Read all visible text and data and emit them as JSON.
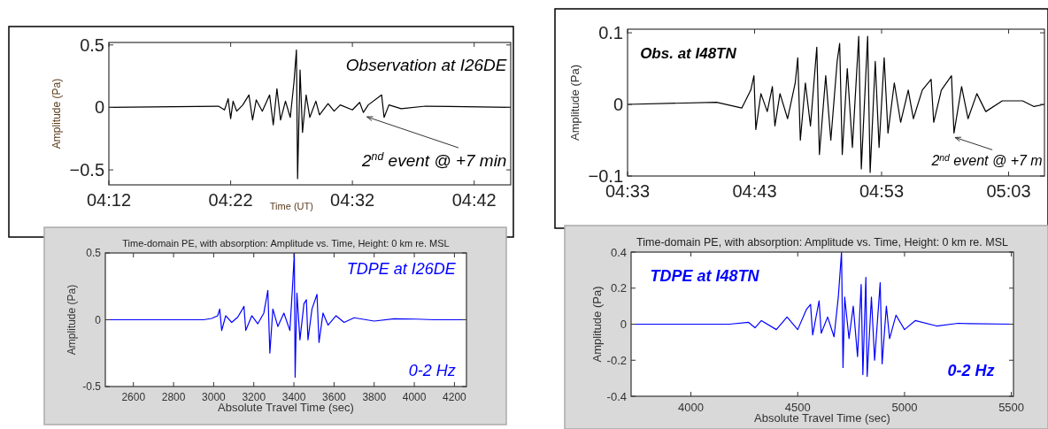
{
  "chart_data": [
    {
      "type": "line",
      "xlabel": "Time (UT)",
      "ylabel": "Amplitude (Pa)",
      "xlim": [
        4.2,
        4.75
      ],
      "ylim": [
        -0.62,
        0.52
      ],
      "xticks": [
        {
          "value": 4.2,
          "label": "04:12"
        },
        {
          "value": 4.3667,
          "label": "04:22"
        },
        {
          "value": 4.5333,
          "label": "04:32"
        },
        {
          "value": 4.7,
          "label": "04:42"
        }
      ],
      "yticks": [
        {
          "value": -0.5,
          "label": "−0.5"
        },
        0,
        0.5
      ],
      "grid": false,
      "annotations": [
        "Observation at I26DE",
        {
          "text": "2$^{nd}$ event @ +7 min",
          "x": 4.5483,
          "y": -0.04
        }
      ],
      "series": [
        {
          "color": "#000000",
          "x": [
            4.2,
            4.35,
            4.3583,
            4.3633,
            4.3667,
            4.37,
            4.375,
            4.3833,
            4.3917,
            4.3967,
            4.4017,
            4.41,
            4.42,
            4.425,
            4.43,
            4.435,
            4.4417,
            4.4483,
            4.4533,
            4.4567,
            4.4583,
            4.4617,
            4.465,
            4.47,
            4.475,
            4.4833,
            4.4883,
            4.5,
            4.5083,
            4.5167,
            4.5333,
            4.5433,
            4.5483,
            4.555,
            4.5733,
            4.5767,
            4.5833,
            4.6,
            4.6333,
            4.75
          ],
          "values": [
            0,
            0.01,
            -0.02,
            0.07,
            -0.09,
            0.05,
            -0.03,
            0.02,
            0.1,
            -0.1,
            0.06,
            -0.03,
            0.1,
            -0.14,
            0.15,
            -0.1,
            0.05,
            -0.08,
            0.2,
            0.46,
            -0.57,
            0.3,
            -0.2,
            0.1,
            -0.08,
            0.05,
            -0.06,
            0.03,
            -0.03,
            0.02,
            -0.02,
            0.04,
            -0.04,
            0.02,
            0.1,
            -0.08,
            0.02,
            -0.01,
            0.01,
            0
          ]
        }
      ]
    },
    {
      "type": "line",
      "ylabel": "Amplitude (Pa)",
      "xlim": [
        4.55,
        5.097
      ],
      "ylim": [
        -0.1,
        0.105
      ],
      "xticks": [
        {
          "value": 4.55,
          "label": "04:33"
        },
        {
          "value": 4.7167,
          "label": "04:43"
        },
        {
          "value": 4.8833,
          "label": "04:53"
        },
        {
          "value": 5.05,
          "label": "05:03"
        }
      ],
      "yticks": [
        {
          "value": -0.1,
          "label": "−0.1"
        },
        0,
        0.1
      ],
      "grid": false,
      "annotations": [
        "Obs. at I48TN",
        {
          "text": "2$^{nd}$ event @ +7 m",
          "x": 4.975,
          "y": -0.04
        }
      ],
      "series": [
        {
          "color": "#000000",
          "x": [
            4.55,
            4.6667,
            4.7,
            4.7117,
            4.7158,
            4.7183,
            4.725,
            4.7333,
            4.74,
            4.7433,
            4.75,
            4.76,
            4.77,
            4.7733,
            4.7767,
            4.7833,
            4.79,
            4.7983,
            4.8017,
            4.81,
            4.8167,
            4.825,
            4.8283,
            4.8317,
            4.8383,
            4.845,
            4.8533,
            4.8567,
            4.865,
            4.8683,
            4.875,
            4.88,
            4.8867,
            4.8917,
            4.9,
            4.9083,
            4.9183,
            4.925,
            4.9367,
            4.9483,
            4.9517,
            4.9617,
            4.975,
            4.9783,
            4.9883,
            4.9967,
            5.0083,
            5.02,
            5.0417,
            5.0683,
            5.0833,
            5.0967
          ],
          "values": [
            0,
            0.003,
            -0.005,
            0.02,
            0.04,
            -0.035,
            0.015,
            -0.01,
            0.025,
            -0.03,
            0.015,
            -0.02,
            0.03,
            0.065,
            -0.05,
            0.03,
            -0.03,
            0.08,
            -0.07,
            0.04,
            -0.05,
            0.06,
            0.085,
            -0.07,
            0.05,
            -0.06,
            0.095,
            -0.09,
            0.095,
            -0.095,
            0.06,
            -0.06,
            0.065,
            -0.04,
            0.03,
            -0.025,
            0.02,
            -0.02,
            0.02,
            0.035,
            -0.025,
            0.02,
            0.04,
            -0.04,
            0.025,
            -0.02,
            0.015,
            -0.01,
            0.005,
            0.005,
            -0.003,
            0
          ]
        }
      ]
    },
    {
      "type": "line",
      "title": "Time-domain PE, with absorption: Amplitude vs. Time, Height: 0 km re. MSL",
      "xlabel": "Absolute Travel Time (sec)",
      "ylabel": "Amplitude (Pa)",
      "xlim": [
        2460,
        4260
      ],
      "ylim": [
        -0.5,
        0.5
      ],
      "xticks": [
        2600,
        2800,
        3000,
        3200,
        3400,
        3600,
        3800,
        4000,
        4200
      ],
      "yticks": [
        -0.5,
        0,
        0.5
      ],
      "grid": false,
      "annotations": [
        "TDPE at I26DE",
        "0-2 Hz"
      ],
      "series": [
        {
          "color": "#0000ff",
          "x": [
            2460,
            2950,
            2990,
            3020,
            3030,
            3040,
            3060,
            3090,
            3120,
            3140,
            3151,
            3160,
            3190,
            3220,
            3250,
            3270,
            3280,
            3295,
            3320,
            3350,
            3380,
            3395,
            3402,
            3406,
            3415,
            3430,
            3450,
            3462,
            3470,
            3490,
            3515,
            3525,
            3545,
            3570,
            3610,
            3650,
            3700,
            3800,
            3900,
            4010,
            4100,
            4260
          ],
          "values": [
            0,
            0,
            0.01,
            0.03,
            0.08,
            -0.08,
            0.03,
            -0.02,
            0.02,
            0.07,
            0.1,
            -0.08,
            0.03,
            -0.03,
            0.05,
            0.22,
            -0.25,
            0.08,
            -0.05,
            0.05,
            -0.08,
            0.3,
            0.5,
            -0.43,
            0.2,
            -0.15,
            0.12,
            0.15,
            -0.15,
            0.08,
            0.19,
            -0.17,
            0.05,
            -0.04,
            0.03,
            -0.02,
            0.015,
            -0.01,
            0.008,
            0.005,
            0,
            0
          ]
        }
      ]
    },
    {
      "type": "line",
      "title": "Time-domain PE, with absorption: Amplitude vs. Time, Height: 0 km re. MSL",
      "xlabel": "Absolute Travel Time (sec)",
      "ylabel": "Amplitude (Pa)",
      "xlim": [
        3720,
        5510
      ],
      "ylim": [
        -0.4,
        0.4
      ],
      "xticks": [
        4000,
        4500,
        5000,
        5500
      ],
      "yticks": [
        -0.4,
        -0.2,
        0,
        0.2,
        0.4
      ],
      "grid": false,
      "annotations": [
        "TDPE at I48TN",
        "0-2 Hz"
      ],
      "series": [
        {
          "color": "#0000ff",
          "x": [
            3720,
            4180,
            4270,
            4300,
            4330,
            4400,
            4450,
            4500,
            4540,
            4560,
            4570,
            4600,
            4610,
            4640,
            4670,
            4690,
            4705,
            4712,
            4720,
            4740,
            4760,
            4780,
            4797,
            4805,
            4819,
            4825,
            4845,
            4860,
            4886,
            4895,
            4915,
            4930,
            4960,
            5000,
            5050,
            5150,
            5250,
            5300,
            5510
          ],
          "values": [
            0,
            0,
            0.01,
            -0.02,
            0.02,
            -0.03,
            0.04,
            -0.03,
            0.08,
            0.11,
            -0.06,
            0.13,
            -0.05,
            0.04,
            -0.07,
            0.15,
            0.4,
            -0.24,
            0.15,
            -0.08,
            0.1,
            -0.18,
            0.22,
            -0.28,
            0.26,
            -0.29,
            0.15,
            -0.2,
            0.23,
            -0.22,
            0.1,
            -0.08,
            0.05,
            -0.03,
            0.02,
            -0.01,
            0.005,
            0.003,
            0
          ]
        }
      ]
    }
  ]
}
